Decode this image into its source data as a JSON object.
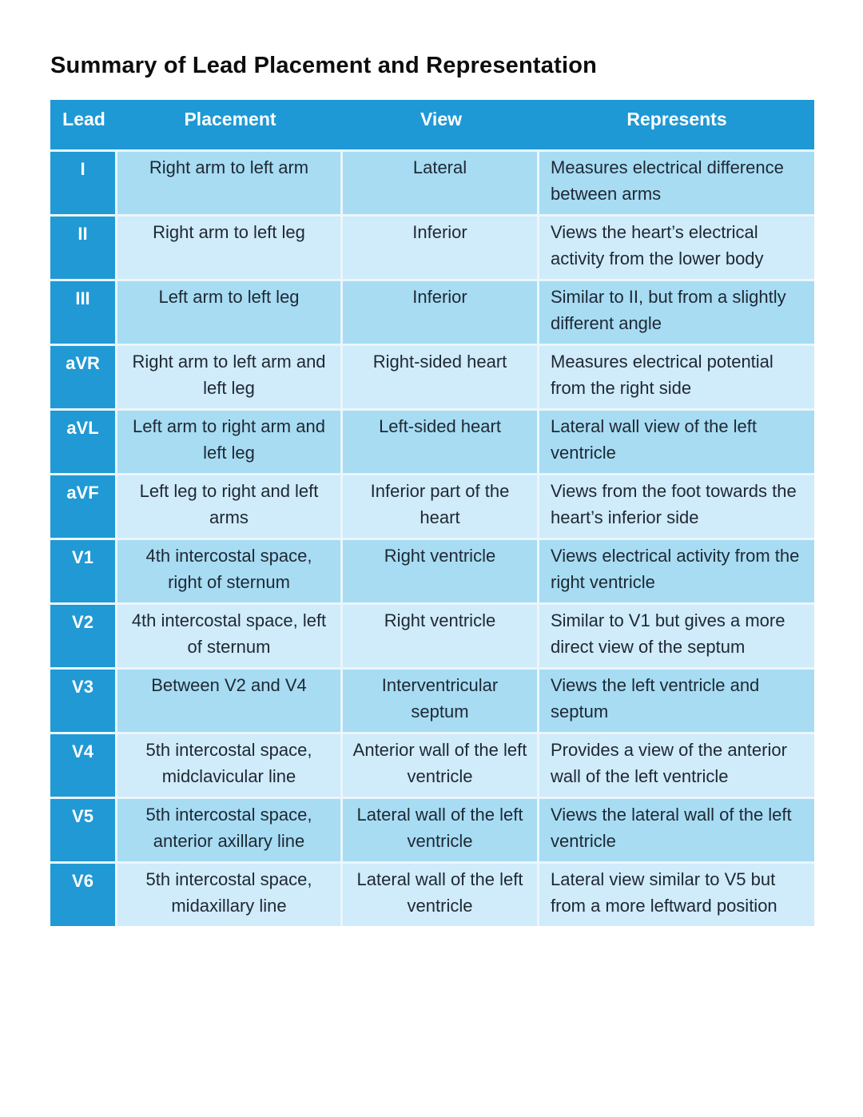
{
  "title": "Summary of Lead Placement and Representation",
  "colors": {
    "header_bg": "#1E99D5",
    "lead_col_bg": "#2099D5",
    "row_odd_bg": "#A7DCF3",
    "row_even_bg": "#D0EBFA",
    "grid_line": "#EAF6FD",
    "header_text": "#FFFFFF",
    "body_text": "#1E2833"
  },
  "table": {
    "columns": [
      "Lead",
      "Placement",
      "View",
      "Represents"
    ],
    "rows": [
      {
        "lead": "I",
        "placement": "Right arm to left arm",
        "view": "Lateral",
        "represents": "Measures electrical difference between arms"
      },
      {
        "lead": "II",
        "placement": "Right arm to left leg",
        "view": "Inferior",
        "represents": "Views the heart’s electrical activity from the lower body"
      },
      {
        "lead": "III",
        "placement": "Left arm to left leg",
        "view": "Inferior",
        "represents": "Similar to II, but from a slightly different angle"
      },
      {
        "lead": "aVR",
        "placement": "Right arm to left arm and left leg",
        "view": "Right-sided heart",
        "represents": "Measures electrical potential from the right side"
      },
      {
        "lead": "aVL",
        "placement": "Left arm to right arm and left leg",
        "view": "Left-sided heart",
        "represents": "Lateral wall view of the left ventricle"
      },
      {
        "lead": "aVF",
        "placement": "Left leg to right and left arms",
        "view": "Inferior part of the heart",
        "represents": "Views from the foot towards the heart’s inferior side"
      },
      {
        "lead": "V1",
        "placement": "4th intercostal space, right of sternum",
        "view": "Right ventricle",
        "represents": "Views electrical activity from the right ventricle"
      },
      {
        "lead": "V2",
        "placement": "4th intercostal space, left of sternum",
        "view": "Right ventricle",
        "represents": "Similar to V1 but gives a more direct view of the septum"
      },
      {
        "lead": "V3",
        "placement": "Between V2 and V4",
        "view": "Interventricular septum",
        "represents": "Views the left ventricle and septum"
      },
      {
        "lead": "V4",
        "placement": "5th intercostal space, midclavicular line",
        "view": "Anterior wall of the left ventricle",
        "represents": "Provides a view of the anterior wall of the left ventricle"
      },
      {
        "lead": "V5",
        "placement": "5th intercostal space, anterior axillary line",
        "view": "Lateral wall of the left ventricle",
        "represents": "Views the lateral wall of the left ventricle"
      },
      {
        "lead": "V6",
        "placement": "5th intercostal space, midaxillary line",
        "view": "Lateral wall of the left ventricle",
        "represents": "Lateral view similar to V5 but from a more leftward position"
      }
    ]
  }
}
